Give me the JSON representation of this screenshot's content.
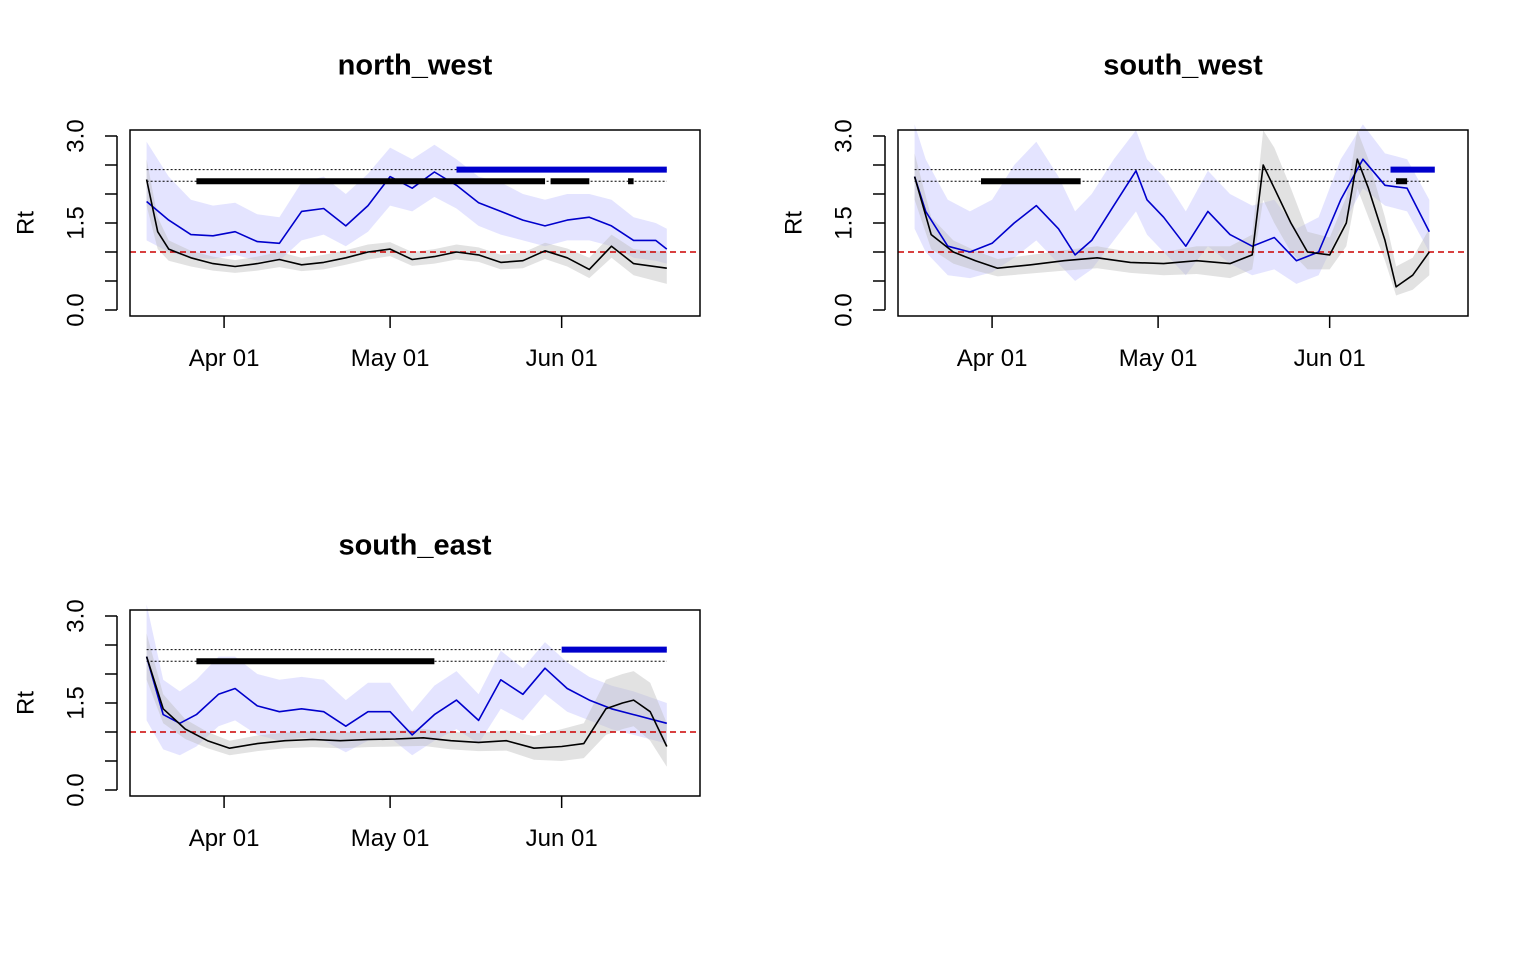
{
  "chart_data": [
    {
      "type": "line",
      "title": "north_west",
      "ylabel": "Rt",
      "xlabel": "",
      "x_start": "2020-03-18",
      "ylim": [
        0,
        3.0
      ],
      "xlim": [
        "2020-03-15",
        "2020-06-26"
      ],
      "y_ticks": [
        0,
        1.5,
        3.0
      ],
      "y_tick_labels": [
        "0.0",
        "1.5",
        "3.0"
      ],
      "x_ticks": [
        "2020-04-01",
        "2020-05-01",
        "2020-06-01"
      ],
      "x_tick_labels": [
        "Apr 01",
        "May 01",
        "Jun 01"
      ],
      "reference_line": 1.0,
      "series": [
        {
          "color": "#0000cc",
          "dates": [
            "2020-03-18",
            "2020-03-22",
            "2020-03-26",
            "2020-03-30",
            "2020-04-03",
            "2020-04-07",
            "2020-04-11",
            "2020-04-15",
            "2020-04-19",
            "2020-04-23",
            "2020-04-27",
            "2020-05-01",
            "2020-05-05",
            "2020-05-09",
            "2020-05-13",
            "2020-05-17",
            "2020-05-21",
            "2020-05-25",
            "2020-05-29",
            "2020-06-02",
            "2020-06-06",
            "2020-06-10",
            "2020-06-14",
            "2020-06-18",
            "2020-06-20"
          ],
          "values": [
            1.87,
            1.55,
            1.3,
            1.28,
            1.35,
            1.18,
            1.15,
            1.7,
            1.75,
            1.45,
            1.8,
            2.3,
            2.1,
            2.38,
            2.15,
            1.85,
            1.7,
            1.55,
            1.45,
            1.55,
            1.6,
            1.45,
            1.2,
            1.2,
            1.05
          ],
          "lower": [
            1.2,
            1.0,
            0.9,
            0.88,
            0.95,
            0.85,
            0.85,
            1.2,
            1.3,
            1.1,
            1.35,
            1.8,
            1.7,
            1.95,
            1.75,
            1.45,
            1.3,
            1.2,
            1.1,
            1.2,
            1.2,
            1.1,
            0.9,
            0.85,
            0.8
          ],
          "upper": [
            2.9,
            2.3,
            1.9,
            1.8,
            1.85,
            1.65,
            1.6,
            2.2,
            2.3,
            2.0,
            2.35,
            2.8,
            2.6,
            2.85,
            2.6,
            2.3,
            2.2,
            2.0,
            1.9,
            2.0,
            2.0,
            1.9,
            1.6,
            1.5,
            1.4
          ]
        },
        {
          "color": "#000000",
          "dates": [
            "2020-03-18",
            "2020-03-20",
            "2020-03-22",
            "2020-03-26",
            "2020-03-30",
            "2020-04-03",
            "2020-04-07",
            "2020-04-11",
            "2020-04-15",
            "2020-04-19",
            "2020-04-23",
            "2020-04-27",
            "2020-05-01",
            "2020-05-05",
            "2020-05-09",
            "2020-05-13",
            "2020-05-17",
            "2020-05-21",
            "2020-05-25",
            "2020-05-29",
            "2020-06-02",
            "2020-06-06",
            "2020-06-10",
            "2020-06-14",
            "2020-06-20"
          ],
          "values": [
            2.25,
            1.35,
            1.05,
            0.9,
            0.8,
            0.75,
            0.8,
            0.87,
            0.78,
            0.82,
            0.9,
            1.0,
            1.05,
            0.87,
            0.92,
            1.0,
            0.95,
            0.82,
            0.85,
            1.02,
            0.9,
            0.7,
            1.1,
            0.8,
            0.72
          ],
          "lower": [
            1.8,
            1.05,
            0.85,
            0.75,
            0.68,
            0.64,
            0.68,
            0.74,
            0.67,
            0.7,
            0.78,
            0.87,
            0.93,
            0.76,
            0.8,
            0.87,
            0.83,
            0.7,
            0.72,
            0.88,
            0.75,
            0.55,
            0.9,
            0.6,
            0.45
          ],
          "upper": [
            2.6,
            1.6,
            1.2,
            1.02,
            0.92,
            0.86,
            0.92,
            1.0,
            0.9,
            0.95,
            1.03,
            1.13,
            1.17,
            1.0,
            1.05,
            1.13,
            1.08,
            0.95,
            0.99,
            1.16,
            1.06,
            0.9,
            1.3,
            1.05,
            1.0
          ]
        }
      ],
      "thresholds": [
        {
          "value": 2.42,
          "color": "#0000cc",
          "bars": [
            [
              "2020-05-13",
              "2020-06-20"
            ]
          ]
        },
        {
          "value": 2.22,
          "color": "#000000",
          "bars": [
            [
              "2020-03-27",
              "2020-05-29"
            ],
            [
              "2020-05-30",
              "2020-06-06"
            ],
            [
              "2020-06-13",
              "2020-06-14"
            ]
          ]
        }
      ]
    },
    {
      "type": "line",
      "title": "south_west",
      "ylabel": "Rt",
      "xlabel": "",
      "x_start": "2020-03-18",
      "ylim": [
        0,
        3.0
      ],
      "xlim": [
        "2020-03-15",
        "2020-06-26"
      ],
      "y_ticks": [
        0,
        1.5,
        3.0
      ],
      "y_tick_labels": [
        "0.0",
        "1.5",
        "3.0"
      ],
      "x_ticks": [
        "2020-04-01",
        "2020-05-01",
        "2020-06-01"
      ],
      "x_tick_labels": [
        "Apr 01",
        "May 01",
        "Jun 01"
      ],
      "reference_line": 1.0,
      "series": [
        {
          "color": "#0000cc",
          "dates": [
            "2020-03-18",
            "2020-03-20",
            "2020-03-24",
            "2020-03-28",
            "2020-04-01",
            "2020-04-05",
            "2020-04-09",
            "2020-04-13",
            "2020-04-16",
            "2020-04-19",
            "2020-04-23",
            "2020-04-27",
            "2020-04-29",
            "2020-05-02",
            "2020-05-06",
            "2020-05-10",
            "2020-05-14",
            "2020-05-18",
            "2020-05-22",
            "2020-05-26",
            "2020-05-30",
            "2020-06-03",
            "2020-06-07",
            "2020-06-11",
            "2020-06-15",
            "2020-06-19"
          ],
          "values": [
            2.3,
            1.7,
            1.1,
            1.0,
            1.15,
            1.5,
            1.8,
            1.4,
            0.95,
            1.2,
            1.8,
            2.4,
            1.9,
            1.6,
            1.1,
            1.7,
            1.3,
            1.1,
            1.25,
            0.85,
            1.0,
            1.9,
            2.6,
            2.15,
            2.1,
            1.35
          ],
          "lower": [
            1.4,
            1.0,
            0.6,
            0.55,
            0.65,
            0.9,
            1.2,
            0.8,
            0.5,
            0.7,
            1.2,
            1.7,
            1.3,
            1.0,
            0.6,
            1.1,
            0.8,
            0.6,
            0.7,
            0.45,
            0.6,
            1.4,
            2.1,
            1.8,
            1.7,
            1.0
          ],
          "upper": [
            3.2,
            2.6,
            1.9,
            1.7,
            1.9,
            2.5,
            2.9,
            2.3,
            1.7,
            2.0,
            2.6,
            3.1,
            2.6,
            2.3,
            1.7,
            2.4,
            2.0,
            1.8,
            1.9,
            1.4,
            1.6,
            2.6,
            3.2,
            2.7,
            2.6,
            1.9
          ]
        },
        {
          "color": "#000000",
          "dates": [
            "2020-03-18",
            "2020-03-21",
            "2020-03-25",
            "2020-03-29",
            "2020-04-02",
            "2020-04-08",
            "2020-04-14",
            "2020-04-20",
            "2020-04-26",
            "2020-05-02",
            "2020-05-08",
            "2020-05-14",
            "2020-05-18",
            "2020-05-20",
            "2020-05-22",
            "2020-05-25",
            "2020-05-28",
            "2020-06-01",
            "2020-06-04",
            "2020-06-06",
            "2020-06-08",
            "2020-06-11",
            "2020-06-13",
            "2020-06-16",
            "2020-06-19"
          ],
          "values": [
            2.3,
            1.3,
            1.0,
            0.85,
            0.72,
            0.78,
            0.85,
            0.9,
            0.82,
            0.8,
            0.85,
            0.8,
            0.95,
            2.5,
            2.1,
            1.5,
            1.0,
            0.95,
            1.5,
            2.6,
            2.1,
            1.2,
            0.4,
            0.6,
            1.0
          ],
          "lower": [
            1.9,
            1.05,
            0.8,
            0.68,
            0.58,
            0.63,
            0.68,
            0.72,
            0.64,
            0.6,
            0.62,
            0.55,
            0.7,
            1.9,
            1.5,
            1.0,
            0.7,
            0.7,
            1.1,
            2.1,
            1.6,
            0.85,
            0.25,
            0.35,
            0.6
          ],
          "upper": [
            2.7,
            1.6,
            1.2,
            1.02,
            0.88,
            0.95,
            1.03,
            1.1,
            1.0,
            1.0,
            1.1,
            1.1,
            1.3,
            3.1,
            2.8,
            2.1,
            1.35,
            1.25,
            1.95,
            3.1,
            2.6,
            1.6,
            0.75,
            0.9,
            1.4
          ]
        }
      ],
      "thresholds": [
        {
          "value": 2.42,
          "color": "#0000cc",
          "bars": [
            [
              "2020-06-12",
              "2020-06-20"
            ]
          ]
        },
        {
          "value": 2.22,
          "color": "#000000",
          "bars": [
            [
              "2020-03-30",
              "2020-04-17"
            ],
            [
              "2020-06-13",
              "2020-06-15"
            ]
          ]
        }
      ]
    },
    {
      "type": "line",
      "title": "south_east",
      "ylabel": "Rt",
      "xlabel": "",
      "x_start": "2020-03-18",
      "ylim": [
        0,
        3.0
      ],
      "xlim": [
        "2020-03-15",
        "2020-06-26"
      ],
      "y_ticks": [
        0,
        1.5,
        3.0
      ],
      "y_tick_labels": [
        "0.0",
        "1.5",
        "3.0"
      ],
      "x_ticks": [
        "2020-04-01",
        "2020-05-01",
        "2020-06-01"
      ],
      "x_tick_labels": [
        "Apr 01",
        "May 01",
        "Jun 01"
      ],
      "reference_line": 1.0,
      "series": [
        {
          "color": "#0000cc",
          "dates": [
            "2020-03-18",
            "2020-03-21",
            "2020-03-24",
            "2020-03-27",
            "2020-03-31",
            "2020-04-03",
            "2020-04-07",
            "2020-04-11",
            "2020-04-15",
            "2020-04-19",
            "2020-04-23",
            "2020-04-27",
            "2020-05-01",
            "2020-05-05",
            "2020-05-09",
            "2020-05-13",
            "2020-05-17",
            "2020-05-21",
            "2020-05-25",
            "2020-05-29",
            "2020-06-02",
            "2020-06-06",
            "2020-06-10",
            "2020-06-14",
            "2020-06-20"
          ],
          "values": [
            2.3,
            1.3,
            1.15,
            1.3,
            1.65,
            1.75,
            1.45,
            1.35,
            1.4,
            1.35,
            1.1,
            1.35,
            1.35,
            0.95,
            1.3,
            1.55,
            1.2,
            1.9,
            1.65,
            2.1,
            1.75,
            1.55,
            1.4,
            1.3,
            1.15
          ],
          "lower": [
            1.2,
            0.7,
            0.6,
            0.75,
            1.1,
            1.2,
            0.95,
            0.85,
            0.9,
            0.85,
            0.65,
            0.85,
            0.9,
            0.6,
            0.85,
            1.05,
            0.8,
            1.4,
            1.2,
            1.65,
            1.35,
            1.2,
            1.05,
            0.95,
            0.8
          ],
          "upper": [
            3.2,
            1.9,
            1.7,
            1.9,
            2.3,
            2.3,
            2.0,
            1.9,
            1.95,
            1.9,
            1.55,
            1.85,
            1.85,
            1.35,
            1.8,
            2.05,
            1.65,
            2.4,
            2.1,
            2.55,
            2.2,
            1.95,
            1.8,
            1.7,
            1.5
          ]
        },
        {
          "color": "#000000",
          "dates": [
            "2020-03-18",
            "2020-03-21",
            "2020-03-25",
            "2020-03-29",
            "2020-04-02",
            "2020-04-07",
            "2020-04-12",
            "2020-04-17",
            "2020-04-22",
            "2020-04-27",
            "2020-05-02",
            "2020-05-07",
            "2020-05-12",
            "2020-05-17",
            "2020-05-22",
            "2020-05-27",
            "2020-06-01",
            "2020-06-05",
            "2020-06-09",
            "2020-06-12",
            "2020-06-14",
            "2020-06-17",
            "2020-06-20"
          ],
          "values": [
            2.3,
            1.4,
            1.05,
            0.85,
            0.72,
            0.8,
            0.85,
            0.87,
            0.85,
            0.87,
            0.88,
            0.9,
            0.85,
            0.82,
            0.85,
            0.72,
            0.75,
            0.8,
            1.4,
            1.5,
            1.55,
            1.35,
            0.75
          ],
          "lower": [
            1.9,
            1.15,
            0.88,
            0.72,
            0.6,
            0.67,
            0.72,
            0.74,
            0.72,
            0.74,
            0.75,
            0.76,
            0.7,
            0.67,
            0.68,
            0.52,
            0.5,
            0.55,
            0.95,
            1.05,
            1.1,
            0.85,
            0.4
          ],
          "upper": [
            2.7,
            1.65,
            1.22,
            1.0,
            0.85,
            0.94,
            0.99,
            1.01,
            0.99,
            1.01,
            1.02,
            1.05,
            1.0,
            0.98,
            1.03,
            0.93,
            1.05,
            1.15,
            1.9,
            2.0,
            2.05,
            1.85,
            1.15
          ]
        }
      ],
      "thresholds": [
        {
          "value": 2.42,
          "color": "#0000cc",
          "bars": [
            [
              "2020-06-01",
              "2020-06-20"
            ]
          ]
        },
        {
          "value": 2.22,
          "color": "#000000",
          "bars": [
            [
              "2020-03-27",
              "2020-05-09"
            ]
          ]
        }
      ]
    }
  ]
}
